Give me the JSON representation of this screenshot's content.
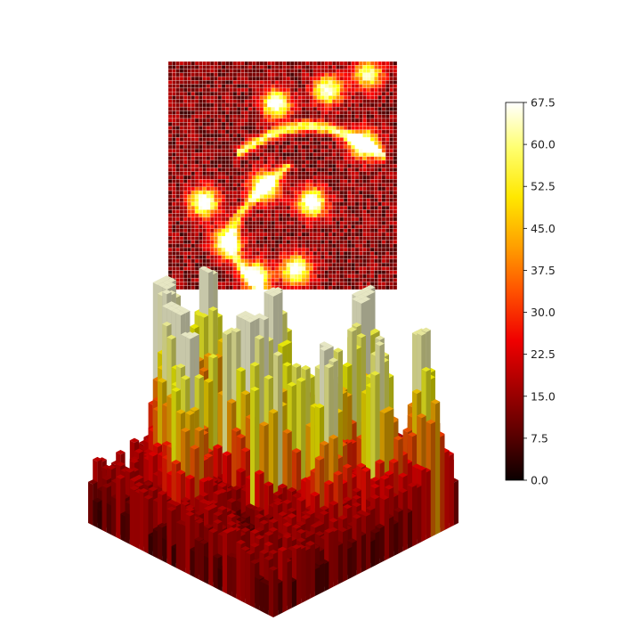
{
  "chart_data": [
    {
      "type": "heatmap",
      "title": "",
      "xlabel": "",
      "ylabel": "",
      "grid": true,
      "colormap": "hot",
      "value_range": [
        0,
        67.5
      ],
      "shape": [
        60,
        60
      ],
      "description_of_values": "intensity field with bright ridges forming curved filaments",
      "bright_features": [
        {
          "cx": 0.47,
          "cy": 0.18,
          "peak": 60
        },
        {
          "cx": 0.7,
          "cy": 0.12,
          "peak": 58
        },
        {
          "cx": 0.86,
          "cy": 0.36,
          "peak": 67
        },
        {
          "cx": 0.42,
          "cy": 0.55,
          "peak": 65
        },
        {
          "cx": 0.63,
          "cy": 0.62,
          "peak": 64
        },
        {
          "cx": 0.15,
          "cy": 0.62,
          "peak": 62
        },
        {
          "cx": 0.25,
          "cy": 0.8,
          "peak": 55
        },
        {
          "cx": 0.56,
          "cy": 0.92,
          "peak": 60
        },
        {
          "cx": 0.38,
          "cy": 0.95,
          "peak": 62
        },
        {
          "cx": 0.88,
          "cy": 0.05,
          "peak": 50
        }
      ]
    },
    {
      "type": "bar3d",
      "title": "",
      "colormap": "hot",
      "value_range": [
        0,
        67.5
      ],
      "shape": [
        60,
        60
      ],
      "note": "same field as the heatmap rendered as 3D bars"
    }
  ],
  "colorbar": {
    "ticks": [
      "0.0",
      "7.5",
      "15.0",
      "22.5",
      "30.0",
      "37.5",
      "45.0",
      "52.5",
      "60.0",
      "67.5"
    ],
    "min": 0,
    "max": 67.5
  }
}
